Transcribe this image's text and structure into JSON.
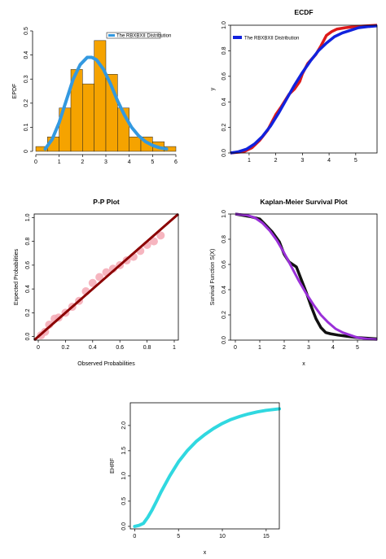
{
  "chart_data": [
    {
      "type": "bar",
      "title": "",
      "xlabel": "",
      "ylabel": "EPDF",
      "xlim": [
        0,
        6
      ],
      "ylim": [
        0,
        0.5
      ],
      "xticks": [
        0,
        1,
        2,
        3,
        4,
        5,
        6
      ],
      "yticks": [
        0,
        0.1,
        0.2,
        0.3,
        0.4,
        0.5
      ],
      "bins": [
        {
          "x0": 0.0,
          "x1": 0.5,
          "value": 0.02
        },
        {
          "x0": 0.5,
          "x1": 1.0,
          "value": 0.06
        },
        {
          "x0": 1.0,
          "x1": 1.5,
          "value": 0.18
        },
        {
          "x0": 1.5,
          "x1": 2.0,
          "value": 0.34
        },
        {
          "x0": 2.0,
          "x1": 2.5,
          "value": 0.28
        },
        {
          "x0": 2.5,
          "x1": 3.0,
          "value": 0.46
        },
        {
          "x0": 3.0,
          "x1": 3.5,
          "value": 0.32
        },
        {
          "x0": 3.5,
          "x1": 4.0,
          "value": 0.18
        },
        {
          "x0": 4.0,
          "x1": 4.5,
          "value": 0.06
        },
        {
          "x0": 4.5,
          "x1": 5.0,
          "value": 0.06
        },
        {
          "x0": 5.0,
          "x1": 5.5,
          "value": 0.04
        },
        {
          "x0": 5.5,
          "x1": 6.0,
          "value": 0.02
        }
      ],
      "series": [
        {
          "name": "The RBXBXII Distribution",
          "x": [
            0.4,
            0.7,
            1.0,
            1.3,
            1.6,
            1.9,
            2.2,
            2.4,
            2.6,
            2.9,
            3.2,
            3.5,
            3.8,
            4.1,
            4.4,
            4.7,
            5.0,
            5.3,
            5.6
          ],
          "y": [
            0.01,
            0.05,
            0.12,
            0.21,
            0.3,
            0.36,
            0.39,
            0.39,
            0.38,
            0.34,
            0.28,
            0.21,
            0.15,
            0.1,
            0.065,
            0.04,
            0.025,
            0.015,
            0.01
          ]
        }
      ],
      "colors": {
        "bars": "#f5a300",
        "line": "#3399e0"
      },
      "legend": "top-right"
    },
    {
      "type": "line",
      "title": "ECDF",
      "xlabel": "",
      "ylabel": "y",
      "xlim": [
        0.3,
        5.8
      ],
      "ylim": [
        0,
        1.0
      ],
      "xticks": [
        1,
        2,
        3,
        4,
        5
      ],
      "yticks": [
        0.0,
        0.2,
        0.4,
        0.6,
        0.8,
        1.0
      ],
      "series": [
        {
          "name": "",
          "x": [
            0.3,
            0.8,
            1.1,
            1.4,
            1.7,
            2.0,
            2.2,
            2.5,
            2.7,
            2.9,
            3.0,
            3.2,
            3.5,
            3.7,
            3.9,
            4.1,
            4.3,
            4.6,
            5.0,
            5.8
          ],
          "y": [
            0.0,
            0.01,
            0.04,
            0.1,
            0.18,
            0.3,
            0.36,
            0.46,
            0.5,
            0.56,
            0.62,
            0.7,
            0.77,
            0.84,
            0.92,
            0.95,
            0.97,
            0.98,
            0.99,
            1.0
          ]
        },
        {
          "name": "The RBXBXII Distribution",
          "x": [
            0.3,
            0.6,
            0.9,
            1.2,
            1.5,
            1.8,
            2.1,
            2.4,
            2.7,
            3.0,
            3.3,
            3.6,
            3.9,
            4.2,
            4.5,
            4.8,
            5.1,
            5.5,
            5.8
          ],
          "y": [
            0.0,
            0.01,
            0.03,
            0.07,
            0.13,
            0.21,
            0.31,
            0.42,
            0.53,
            0.63,
            0.72,
            0.8,
            0.86,
            0.91,
            0.94,
            0.96,
            0.98,
            0.99,
            0.995
          ]
        }
      ],
      "colors": {
        "empirical": "#dd1a1a",
        "fitted": "#1122dd"
      },
      "legend": "top-left"
    },
    {
      "type": "scatter",
      "title": "P-P Plot",
      "xlabel": "Observed Probabilities",
      "ylabel": "Expected Probabilities",
      "xlim": [
        -0.03,
        1.03
      ],
      "ylim": [
        -0.03,
        1.03
      ],
      "xticks": [
        0.0,
        0.2,
        0.4,
        0.6,
        0.8,
        1.0
      ],
      "yticks": [
        0.0,
        0.2,
        0.4,
        0.6,
        0.8,
        1.0
      ],
      "series": [
        {
          "name": "",
          "x": [
            0.02,
            0.05,
            0.08,
            0.12,
            0.15,
            0.2,
            0.25,
            0.3,
            0.35,
            0.4,
            0.45,
            0.5,
            0.55,
            0.6,
            0.65,
            0.7,
            0.75,
            0.8,
            0.85,
            0.9
          ],
          "y": [
            0.01,
            0.04,
            0.1,
            0.15,
            0.16,
            0.2,
            0.25,
            0.3,
            0.38,
            0.45,
            0.5,
            0.54,
            0.57,
            0.6,
            0.64,
            0.67,
            0.72,
            0.77,
            0.8,
            0.85
          ]
        },
        {
          "name": "",
          "x": [
            -0.03,
            1.03
          ],
          "y": [
            -0.03,
            1.03
          ]
        }
      ],
      "colors": {
        "points": "#f4a8b4",
        "line": "#8b0000"
      }
    },
    {
      "type": "line",
      "title": "Kaplan-Meier Survival Plot",
      "xlabel": "x",
      "ylabel": "Survival  Function S(X)",
      "xlim": [
        -0.2,
        5.8
      ],
      "ylim": [
        0,
        1.0
      ],
      "xticks": [
        0,
        1,
        2,
        3,
        4,
        5
      ],
      "yticks": [
        0.0,
        0.2,
        0.4,
        0.6,
        0.8,
        1.0
      ],
      "series": [
        {
          "name": "",
          "x": [
            0.0,
            0.6,
            1.0,
            1.2,
            1.5,
            1.8,
            2.0,
            2.2,
            2.5,
            2.7,
            2.9,
            3.1,
            3.3,
            3.5,
            3.7,
            3.9,
            4.2,
            4.6,
            5.0,
            5.8
          ],
          "y": [
            1.0,
            0.98,
            0.96,
            0.92,
            0.86,
            0.78,
            0.68,
            0.62,
            0.58,
            0.48,
            0.38,
            0.27,
            0.17,
            0.1,
            0.06,
            0.05,
            0.04,
            0.03,
            0.02,
            0.01
          ]
        },
        {
          "name": "",
          "x": [
            0.0,
            0.5,
            0.8,
            1.1,
            1.4,
            1.7,
            2.0,
            2.3,
            2.6,
            2.9,
            3.2,
            3.5,
            3.8,
            4.1,
            4.4,
            4.7,
            5.0,
            5.4,
            5.8
          ],
          "y": [
            1.0,
            0.99,
            0.97,
            0.93,
            0.87,
            0.79,
            0.69,
            0.58,
            0.47,
            0.37,
            0.28,
            0.2,
            0.14,
            0.09,
            0.06,
            0.04,
            0.02,
            0.01,
            0.005
          ]
        }
      ],
      "colors": {
        "empirical": "#111111",
        "fitted": "#9a30d8"
      }
    },
    {
      "type": "line",
      "title": "",
      "xlabel": "x",
      "ylabel": "EHRF",
      "xlim": [
        -0.5,
        16.5
      ],
      "ylim": [
        -0.05,
        2.45
      ],
      "xticks": [
        0,
        5,
        10,
        15
      ],
      "yticks": [
        0.0,
        0.5,
        1.0,
        1.5,
        2.0
      ],
      "series": [
        {
          "name": "",
          "x": [
            0.0,
            0.5,
            1.0,
            1.5,
            2.0,
            2.5,
            3.0,
            4.0,
            5.0,
            6.0,
            7.0,
            8.0,
            9.0,
            10.0,
            11.0,
            12.0,
            13.0,
            14.0,
            15.0,
            16.5
          ],
          "y": [
            0.0,
            0.02,
            0.06,
            0.18,
            0.33,
            0.5,
            0.68,
            1.0,
            1.28,
            1.5,
            1.68,
            1.82,
            1.94,
            2.04,
            2.12,
            2.18,
            2.23,
            2.27,
            2.3,
            2.33
          ]
        }
      ],
      "colors": {
        "line": "#30d8e0"
      }
    }
  ]
}
